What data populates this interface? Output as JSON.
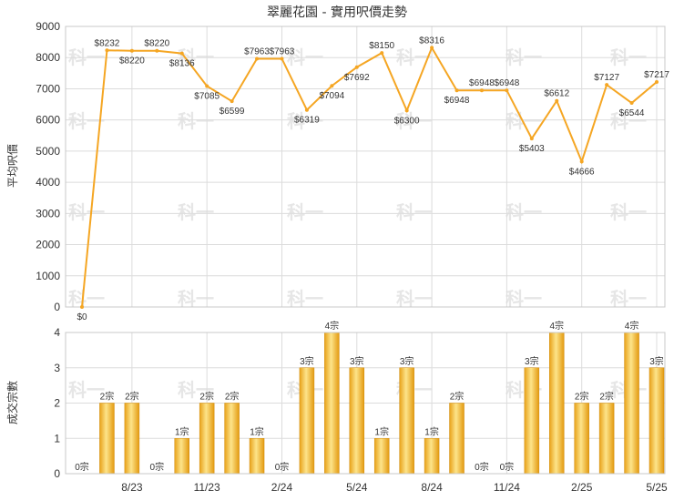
{
  "chart_data": [
    {
      "type": "line",
      "title": "翠麗花園 - 實用呎價走勢",
      "ylabel": "平均呎價",
      "ylim": [
        0,
        9000
      ],
      "yticks": [
        0,
        1000,
        2000,
        3000,
        4000,
        5000,
        6000,
        7000,
        8000,
        9000
      ],
      "color": "#f5a623",
      "value_prefix": "$",
      "values": [
        0,
        8232,
        8220,
        8220,
        8136,
        7085,
        6599,
        7963,
        7963,
        6319,
        7094,
        7692,
        8150,
        6300,
        8316,
        6948,
        6948,
        6948,
        5403,
        6612,
        4666,
        7127,
        6544,
        7217
      ]
    },
    {
      "type": "bar",
      "ylabel": "成交宗數",
      "ylim": [
        0,
        4
      ],
      "yticks": [
        0,
        1,
        2,
        3,
        4
      ],
      "value_suffix": "宗",
      "values": [
        0,
        2,
        2,
        0,
        1,
        2,
        2,
        1,
        0,
        3,
        4,
        3,
        1,
        3,
        1,
        2,
        0,
        0,
        3,
        4,
        2,
        2,
        4,
        3
      ],
      "xtick_labels": [
        "8/23",
        "11/23",
        "2/24",
        "5/24",
        "8/24",
        "11/24",
        "2/25",
        "5/25"
      ],
      "xtick_index": [
        2,
        5,
        8,
        11,
        14,
        17,
        20,
        23
      ]
    }
  ],
  "watermark": "科一"
}
